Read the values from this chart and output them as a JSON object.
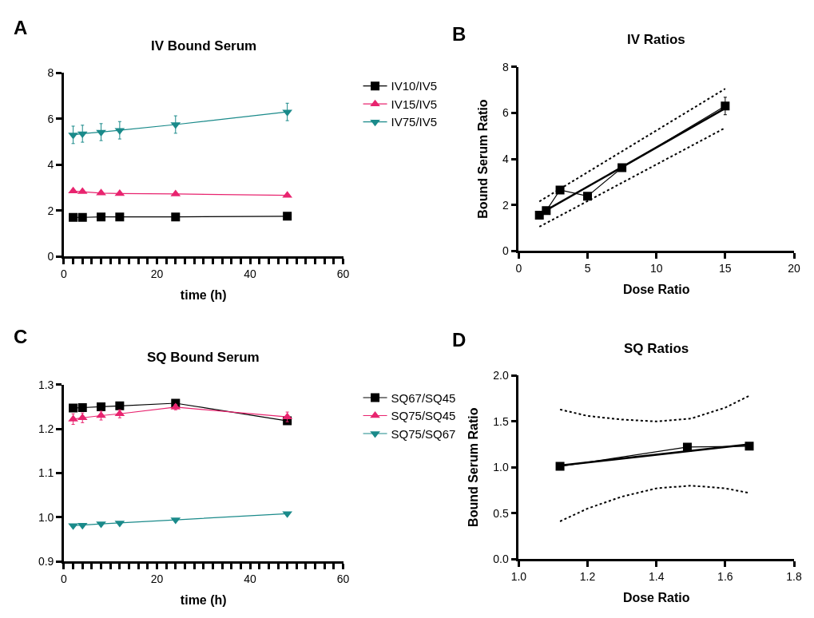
{
  "chart_data": [
    {
      "type": "line",
      "title": "IV Bound Serum",
      "xlabel": "time (h)",
      "annotations": [
        "A"
      ],
      "legend": "right",
      "grid": false,
      "x": [
        2,
        4,
        8,
        12,
        24,
        48
      ],
      "xlim": [
        0,
        60
      ],
      "xticks": [
        0,
        {
          "value": 2,
          "label": null
        },
        {
          "value": 4,
          "label": null
        },
        {
          "value": 6,
          "label": null
        },
        {
          "value": 8,
          "label": null
        },
        {
          "value": 10,
          "label": null
        },
        {
          "value": 12,
          "label": null
        },
        {
          "value": 14,
          "label": null
        },
        {
          "value": 16,
          "label": null
        },
        {
          "value": 18,
          "label": null
        },
        20,
        {
          "value": 22,
          "label": null
        },
        {
          "value": 24,
          "label": null
        },
        {
          "value": 26,
          "label": null
        },
        {
          "value": 28,
          "label": null
        },
        {
          "value": 30,
          "label": null
        },
        {
          "value": 32,
          "label": null
        },
        {
          "value": 34,
          "label": null
        },
        {
          "value": 36,
          "label": null
        },
        {
          "value": 38,
          "label": null
        },
        40,
        {
          "value": 42,
          "label": null
        },
        {
          "value": 44,
          "label": null
        },
        {
          "value": 46,
          "label": null
        },
        {
          "value": 48,
          "label": null
        },
        {
          "value": 50,
          "label": null
        },
        {
          "value": 52,
          "label": null
        },
        {
          "value": 54,
          "label": null
        },
        {
          "value": 56,
          "label": null
        },
        {
          "value": 58,
          "label": null
        },
        60
      ],
      "ylim": [
        0,
        8
      ],
      "yticks": [
        0,
        2,
        4,
        6,
        8
      ],
      "series": [
        {
          "name": "IV10/IV5",
          "color": "#000000",
          "marker": "square",
          "values": [
            1.7,
            1.7,
            1.72,
            1.72,
            1.72,
            1.75
          ]
        },
        {
          "name": "IV15/IV5",
          "color": "#e8246f",
          "marker": "triangle",
          "values": [
            2.85,
            2.82,
            2.76,
            2.74,
            2.72,
            2.66
          ]
        },
        {
          "name": "IV75/IV5",
          "color": "#1a8a8a",
          "marker": "triangle-down",
          "values": [
            5.3,
            5.35,
            5.42,
            5.5,
            5.75,
            6.3
          ],
          "errors": [
            0.38,
            0.37,
            0.37,
            0.38,
            0.38,
            0.38
          ]
        }
      ]
    },
    {
      "type": "line",
      "title": "IV Ratios",
      "xlabel": "Dose Ratio",
      "ylabel": "Bound Serum Ratio",
      "annotations": [
        "B"
      ],
      "grid": false,
      "legend": false,
      "xlim": [
        0,
        20
      ],
      "xticks": [
        0,
        5,
        10,
        15,
        20
      ],
      "ylim": [
        0,
        8
      ],
      "yticks": [
        0,
        2,
        4,
        6,
        8
      ],
      "series": [
        {
          "x": [
            1.5,
            2,
            3,
            5,
            7.5,
            15
          ],
          "color": "#000000",
          "marker": "square",
          "values": [
            1.55,
            1.75,
            2.65,
            2.38,
            3.62,
            6.3
          ],
          "errors": [
            null,
            null,
            null,
            null,
            null,
            0.38
          ]
        },
        {
          "x": [
            1.5,
            15
          ],
          "color": "#000000",
          "marker": "none",
          "values": [
            1.6,
            6.2
          ]
        },
        {
          "x": [
            1.5,
            15
          ],
          "color": "#000000",
          "marker": "none",
          "line_style": "dotted",
          "values": [
            2.15,
            7.05
          ]
        },
        {
          "x": [
            1.5,
            15
          ],
          "color": "#000000",
          "marker": "none",
          "line_style": "dotted",
          "values": [
            1.05,
            5.35
          ]
        }
      ]
    },
    {
      "type": "line",
      "title": "SQ Bound Serum",
      "xlabel": "time (h)",
      "annotations": [
        "C"
      ],
      "legend": "right",
      "grid": false,
      "x": [
        2,
        4,
        8,
        12,
        24,
        48
      ],
      "xlim": [
        0,
        60
      ],
      "xticks": [
        0,
        {
          "value": 2,
          "label": null
        },
        {
          "value": 4,
          "label": null
        },
        {
          "value": 6,
          "label": null
        },
        {
          "value": 8,
          "label": null
        },
        {
          "value": 10,
          "label": null
        },
        {
          "value": 12,
          "label": null
        },
        {
          "value": 14,
          "label": null
        },
        {
          "value": 16,
          "label": null
        },
        {
          "value": 18,
          "label": null
        },
        20,
        {
          "value": 22,
          "label": null
        },
        {
          "value": 24,
          "label": null
        },
        {
          "value": 26,
          "label": null
        },
        {
          "value": 28,
          "label": null
        },
        {
          "value": 30,
          "label": null
        },
        {
          "value": 32,
          "label": null
        },
        {
          "value": 34,
          "label": null
        },
        {
          "value": 36,
          "label": null
        },
        {
          "value": 38,
          "label": null
        },
        40,
        {
          "value": 42,
          "label": null
        },
        {
          "value": 44,
          "label": null
        },
        {
          "value": 46,
          "label": null
        },
        {
          "value": 48,
          "label": null
        },
        {
          "value": 50,
          "label": null
        },
        {
          "value": 52,
          "label": null
        },
        {
          "value": 54,
          "label": null
        },
        {
          "value": 56,
          "label": null
        },
        {
          "value": 58,
          "label": null
        },
        60
      ],
      "ylim": [
        0.9,
        1.3
      ],
      "yticks": [
        0.9,
        {
          "value": 1.0,
          "label": "1.0"
        },
        1.1,
        1.2,
        1.3
      ],
      "series": [
        {
          "name": "SQ67/SQ45",
          "color": "#000000",
          "marker": "square",
          "values": [
            1.247,
            1.248,
            1.25,
            1.252,
            1.258,
            1.218
          ]
        },
        {
          "name": "SQ75/SQ45",
          "color": "#e8246f",
          "marker": "triangle",
          "values": [
            1.222,
            1.225,
            1.23,
            1.234,
            1.249,
            1.227
          ],
          "errors": [
            0.012,
            0.011,
            0.01,
            0.009,
            0.006,
            0.011
          ]
        },
        {
          "name": "SQ75/SQ67",
          "color": "#1a8a8a",
          "marker": "triangle-down",
          "values": [
            0.981,
            0.982,
            0.985,
            0.987,
            0.994,
            1.008
          ]
        }
      ]
    },
    {
      "type": "line",
      "title": "SQ Ratios",
      "xlabel": "Dose Ratio",
      "ylabel": "Bound Serum Ratio",
      "annotations": [
        "D"
      ],
      "grid": false,
      "legend": false,
      "xlim": [
        1.0,
        1.8
      ],
      "xticks": [
        {
          "value": 1.0,
          "label": "1.0"
        },
        1.2,
        1.4,
        1.6,
        1.8
      ],
      "ylim": [
        0,
        2.0
      ],
      "yticks": [
        {
          "value": 0.0,
          "label": "0.0"
        },
        0.5,
        {
          "value": 1.0,
          "label": "1.0"
        },
        1.5,
        {
          "value": 2.0,
          "label": "2.0"
        }
      ],
      "series": [
        {
          "x": [
            1.12,
            1.49,
            1.67
          ],
          "color": "#000000",
          "marker": "square",
          "values": [
            1.01,
            1.22,
            1.23
          ]
        },
        {
          "x": [
            1.12,
            1.67
          ],
          "color": "#000000",
          "marker": "none",
          "values": [
            1.02,
            1.25
          ]
        },
        {
          "x": [
            1.12,
            1.2,
            1.3,
            1.4,
            1.5,
            1.6,
            1.67
          ],
          "color": "#000000",
          "marker": "none",
          "line_style": "dotted",
          "values": [
            1.63,
            1.56,
            1.52,
            1.5,
            1.53,
            1.65,
            1.78
          ]
        },
        {
          "x": [
            1.12,
            1.2,
            1.3,
            1.4,
            1.5,
            1.6,
            1.67
          ],
          "color": "#000000",
          "marker": "none",
          "line_style": "dotted",
          "values": [
            0.41,
            0.55,
            0.68,
            0.77,
            0.8,
            0.77,
            0.72
          ]
        }
      ]
    }
  ]
}
